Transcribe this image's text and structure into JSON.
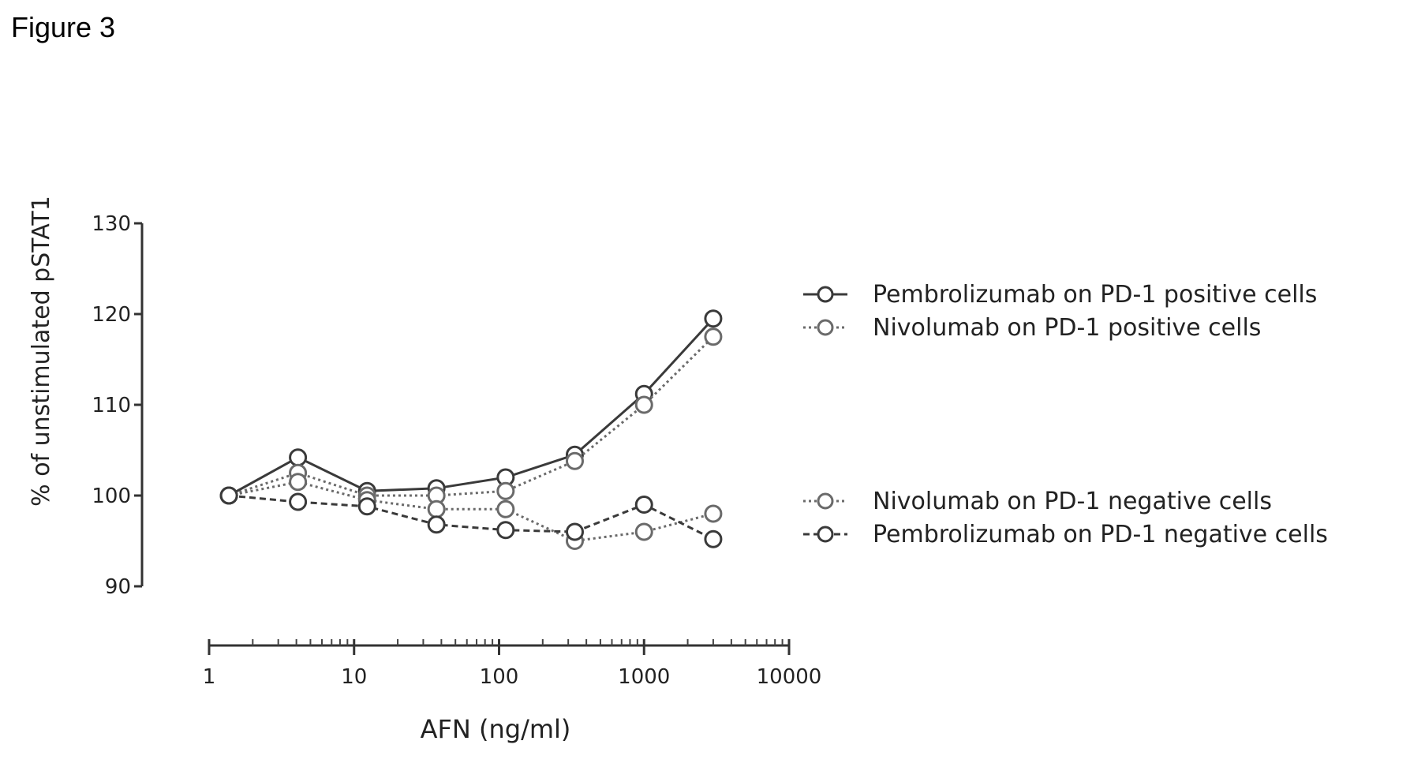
{
  "figure_label": "Figure 3",
  "chart_data": {
    "type": "line",
    "title": "",
    "xlabel": "AFN (ng/ml)",
    "ylabel": "% of unstimulated pSTAT1",
    "x_scale": "log",
    "xlim": [
      1,
      10000
    ],
    "ylim": [
      90,
      130
    ],
    "x_ticks": [
      1,
      10,
      100,
      1000,
      10000
    ],
    "x_tick_labels": [
      "1",
      "10",
      "100",
      "1000",
      "10000"
    ],
    "y_ticks": [
      90,
      100,
      110,
      120,
      130
    ],
    "y_tick_labels": [
      "90",
      "100",
      "110",
      "120",
      "130"
    ],
    "x": [
      1.37,
      4.1,
      12.3,
      37,
      111,
      333,
      1000,
      3000
    ],
    "series": [
      {
        "name": "Pembrolizumab on PD-1 positive cells",
        "values": [
          100,
          104.2,
          100.5,
          100.8,
          102.0,
          104.5,
          111.2,
          119.5
        ],
        "line_style": "solid",
        "color": "#3a3a3a"
      },
      {
        "name": "Nivolumab on PD-1 positive cells",
        "values": [
          100,
          102.5,
          100.0,
          100.0,
          100.5,
          103.8,
          110.0,
          117.5
        ],
        "line_style": "dotted",
        "color": "#6a6a6a"
      },
      {
        "name": "Nivolumab on PD-1 negative cells",
        "values": [
          100,
          101.5,
          99.5,
          98.5,
          98.5,
          95.0,
          96.0,
          98.0
        ],
        "line_style": "dotted",
        "color": "#6a6a6a"
      },
      {
        "name": "Pembrolizumab on PD-1 negative cells",
        "values": [
          100,
          99.3,
          98.8,
          96.8,
          96.2,
          96.0,
          99.0,
          95.2
        ],
        "line_style": "dashed",
        "color": "#3a3a3a"
      }
    ],
    "legend_position": "right",
    "grid": false
  }
}
